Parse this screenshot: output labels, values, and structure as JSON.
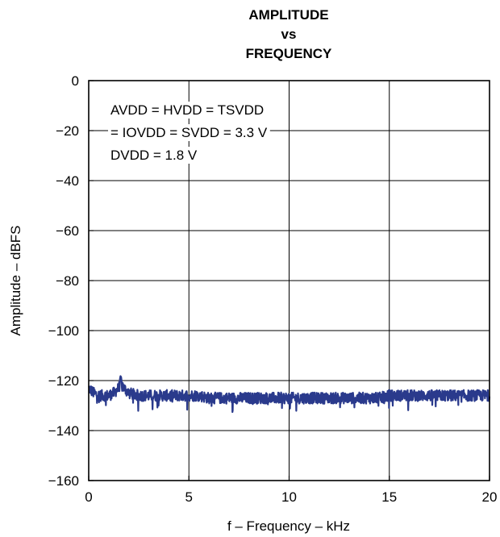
{
  "chart_data": {
    "type": "line",
    "title": [
      "AMPLITUDE",
      "vs",
      "FREQUENCY"
    ],
    "xlabel": "f – Frequency – kHz",
    "ylabel": "Amplitude – dBFS",
    "xlim": [
      0,
      20
    ],
    "ylim": [
      -160,
      0
    ],
    "xticks": [
      0,
      5,
      10,
      15,
      20
    ],
    "xtick_labels": [
      "0",
      "5",
      "10",
      "15",
      "20"
    ],
    "yticks": [
      0,
      -20,
      -40,
      -60,
      -80,
      -100,
      -120,
      -140,
      -160
    ],
    "ytick_labels": [
      "0",
      "−20",
      "−40",
      "−60",
      "−80",
      "−100",
      "−120",
      "−140",
      "−160"
    ],
    "grid": true,
    "annotation": [
      "AVDD = HVDD = TSVDD",
      "= IOVDD = SVDD = 3.3 V",
      "DVDD = 1.8 V"
    ],
    "series_color": "#2a3a8c",
    "series": [
      {
        "x": [
          0.0,
          0.25,
          0.5,
          0.75,
          1.0,
          1.25,
          1.5,
          1.6,
          1.75,
          2.0,
          2.5,
          3.0,
          3.5,
          4.0,
          4.5,
          5.0,
          5.5,
          6.0,
          6.5,
          7.0,
          7.5,
          8.0,
          8.5,
          9.0,
          9.5,
          10.0,
          10.5,
          11.0,
          11.5,
          12.0,
          12.5,
          13.0,
          13.5,
          14.0,
          14.5,
          15.0,
          15.5,
          16.0,
          16.5,
          17.0,
          17.5,
          18.0,
          18.5,
          19.0,
          19.5,
          20.0
        ],
        "y": [
          -123,
          -125,
          -126,
          -126,
          -126,
          -125,
          -123,
          -120,
          -123,
          -125,
          -126,
          -126,
          -126,
          -126,
          -126,
          -126,
          -126,
          -127,
          -127,
          -127,
          -127,
          -127,
          -127,
          -127,
          -127,
          -127,
          -127,
          -127,
          -127,
          -127,
          -127,
          -127,
          -127,
          -127,
          -127,
          -126,
          -126,
          -126,
          -126,
          -126,
          -126,
          -126,
          -126,
          -126,
          -126,
          -126
        ]
      }
    ]
  }
}
